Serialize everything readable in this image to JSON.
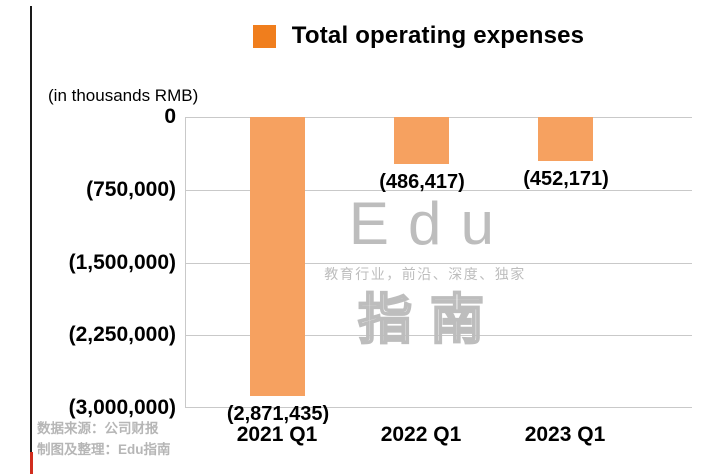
{
  "colors": {
    "bar": "#f6a160",
    "legend_swatch": "#f07e1d",
    "grid": "#c9c9c9",
    "text": "#000000",
    "watermark": "#bdbdbd",
    "source_text": "#b6b6b6",
    "left_line": "#1a1a1a",
    "red_mark": "#d12d1e"
  },
  "chart_data": {
    "type": "bar",
    "title": "Total operating expenses",
    "unit_label": "(in thousands RMB)",
    "legend": [
      "Total operating expenses"
    ],
    "legend_position": "top",
    "categories": [
      "2021 Q1",
      "2022 Q1",
      "2023 Q1"
    ],
    "values": [
      -2871435,
      -486417,
      -452171
    ],
    "data_labels": [
      "(2,871,435)",
      "(486,417)",
      "(452,171)"
    ],
    "ylim": [
      -3000000,
      0
    ],
    "yticks": [
      0,
      -750000,
      -1500000,
      -2250000,
      -3000000
    ],
    "ytick_labels": [
      "0",
      "(750,000)",
      "(1,500,000)",
      "(2,250,000)",
      "(3,000,000)"
    ],
    "grid": true
  },
  "watermark": {
    "line1": "Edu",
    "line2": "教育行业，前沿、深度、独家",
    "line3": "指南"
  },
  "source": {
    "line1": "数据来源：公司财报",
    "line2": "制图及整理：Edu指南"
  }
}
